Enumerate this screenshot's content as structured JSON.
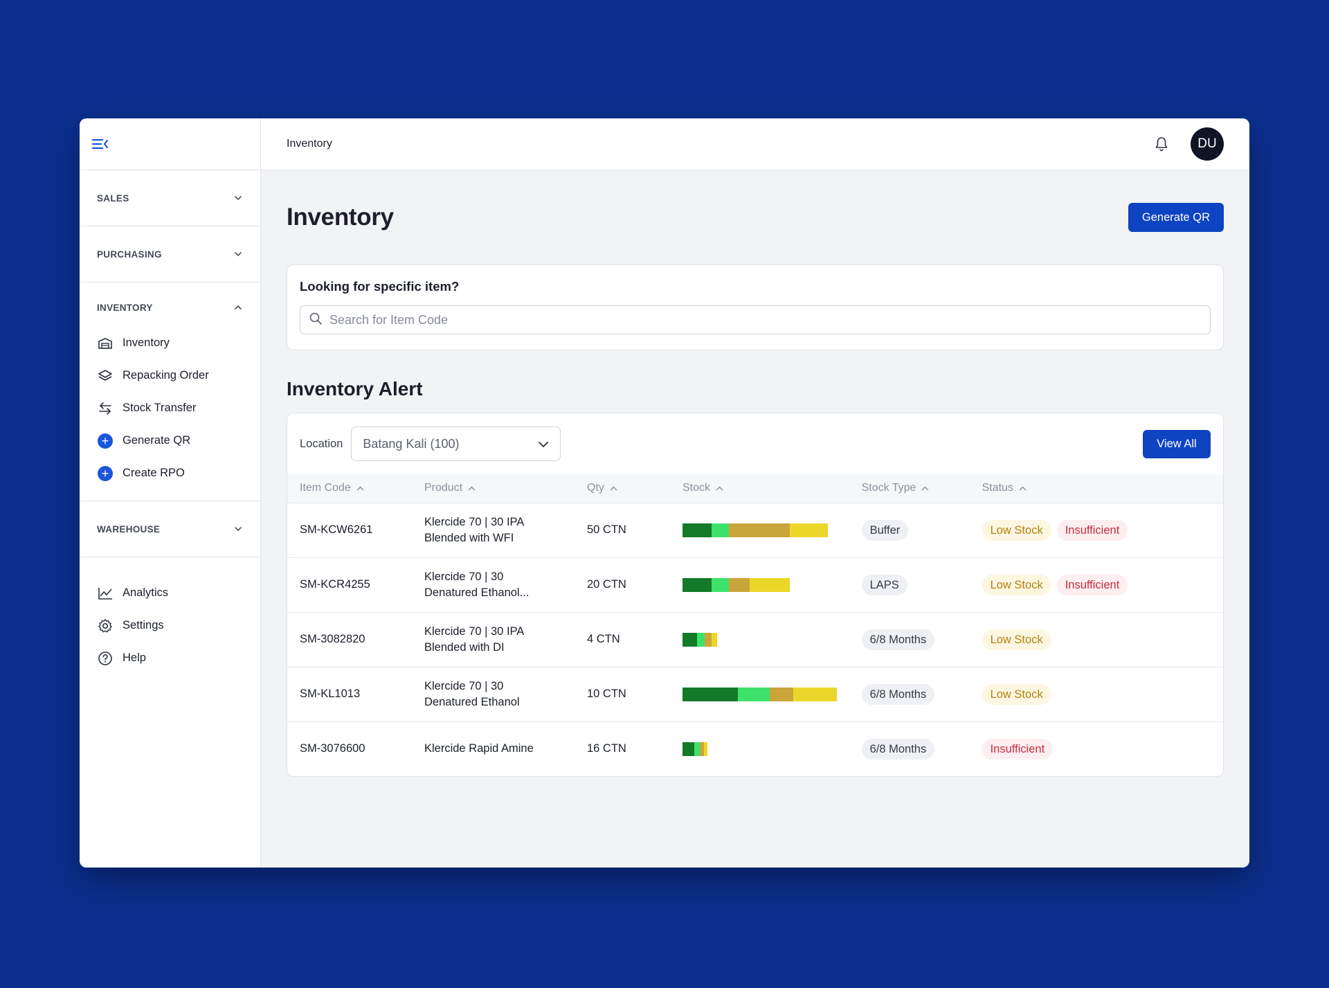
{
  "colors": {
    "background": "#0b2f8e",
    "primary": "#0e44c2",
    "bar_dark_green": "#127a28",
    "bar_light_green": "#3ee26a",
    "bar_mustard": "#c9a53a",
    "bar_yellow": "#ebd72a",
    "low_stock_text": "#b3810f",
    "insufficient_text": "#c42d3f"
  },
  "sidebar": {
    "menu_icon": "menu-collapse-icon",
    "sections": [
      {
        "label": "SALES"
      },
      {
        "label": "PURCHASING"
      },
      {
        "label": "INVENTORY"
      },
      {
        "label": "WAREHOUSE"
      }
    ],
    "inventory_items": [
      {
        "label": "Inventory",
        "icon": "warehouse-icon"
      },
      {
        "label": "Repacking Order",
        "icon": "layers-icon"
      },
      {
        "label": "Stock Transfer",
        "icon": "transfer-icon"
      },
      {
        "label": "Generate QR",
        "icon": "plus-circle-icon"
      },
      {
        "label": "Create RPO",
        "icon": "plus-circle-icon"
      }
    ],
    "bottom_items": [
      {
        "label": "Analytics",
        "icon": "chart-line-icon"
      },
      {
        "label": "Settings",
        "icon": "gear-icon"
      },
      {
        "label": "Help",
        "icon": "help-icon"
      }
    ]
  },
  "topbar": {
    "breadcrumb": "Inventory",
    "avatar_initials": "DU"
  },
  "page": {
    "title": "Inventory",
    "generate_qr_label": "Generate QR"
  },
  "search": {
    "title": "Looking for specific item?",
    "placeholder": "Search for Item Code",
    "value": ""
  },
  "alert": {
    "title": "Inventory Alert",
    "location_label": "Location",
    "location_value": "Batang Kali (100)",
    "view_all_label": "View All",
    "columns": [
      "Item Code",
      "Product",
      "Qty",
      "Stock",
      "Stock Type",
      "Status"
    ],
    "rows": [
      {
        "item_code": "SM-KCW6261",
        "product_line1": "Klercide 70 | 30 IPA",
        "product_line2": "Blended with WFI",
        "qty": "50 CTN",
        "stock_segments": [
          20,
          12,
          42,
          26
        ],
        "stock_type": "Buffer",
        "status": [
          "Low Stock",
          "Insufficient"
        ]
      },
      {
        "item_code": "SM-KCR4255",
        "product_line1": "Klercide 70 | 30",
        "product_line2": "Denatured Ethanol...",
        "qty": "20 CTN",
        "stock_segments": [
          20,
          12,
          14,
          28
        ],
        "stock_type": "LAPS",
        "status": [
          "Low Stock",
          "Insufficient"
        ]
      },
      {
        "item_code": "SM-3082820",
        "product_line1": "Klercide 70 | 30 IPA",
        "product_line2": "Blended with DI",
        "qty": "4 CTN",
        "stock_segments": [
          10,
          5,
          5,
          4
        ],
        "stock_type": "6/8 Months",
        "status": [
          "Low Stock"
        ]
      },
      {
        "item_code": "SM-KL1013",
        "product_line1": "Klercide 70 | 30",
        "product_line2": "Denatured Ethanol",
        "qty": "10 CTN",
        "stock_segments": [
          38,
          22,
          16,
          30
        ],
        "stock_type": "6/8 Months",
        "status": [
          "Low Stock"
        ]
      },
      {
        "item_code": "SM-3076600",
        "product_line1": "Klercide Rapid Amine",
        "product_line2": "",
        "qty": "16 CTN",
        "stock_segments": [
          8,
          4,
          3,
          2
        ],
        "stock_type": "6/8 Months",
        "status": [
          "Insufficient"
        ]
      }
    ]
  }
}
